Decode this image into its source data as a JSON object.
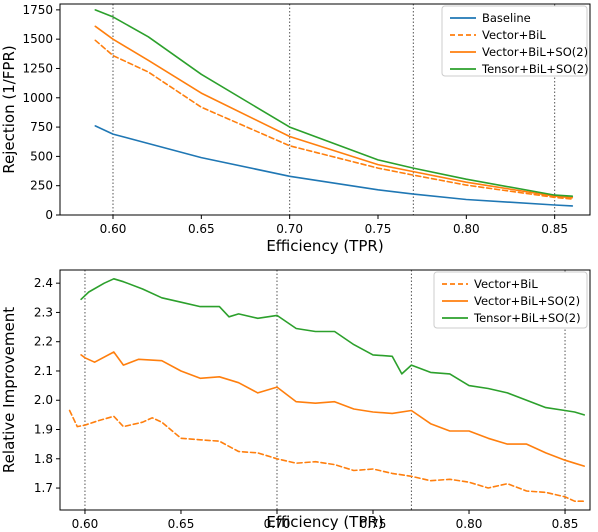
{
  "chart_data": [
    {
      "type": "line",
      "xlabel": "Efficiency (TPR)",
      "ylabel": "Rejection (1/FPR)",
      "xlim": [
        0.57,
        0.87
      ],
      "ylim": [
        0,
        1800
      ],
      "xticks": [
        "0.60",
        "0.65",
        "0.70",
        "0.75",
        "0.80",
        "0.85"
      ],
      "yticks": [
        "0",
        "250",
        "500",
        "750",
        "1000",
        "1250",
        "1500",
        "1750"
      ],
      "vlines": [
        0.6,
        0.7,
        0.77,
        0.85
      ],
      "grid": false,
      "legend_position": "upper right",
      "series": [
        {
          "name": "Baseline",
          "color": "#1f77b4",
          "style": "solid",
          "x": [
            0.59,
            0.6,
            0.62,
            0.65,
            0.7,
            0.75,
            0.77,
            0.8,
            0.85,
            0.86
          ],
          "y": [
            760,
            690,
            610,
            490,
            330,
            215,
            178,
            132,
            85,
            78
          ]
        },
        {
          "name": "Vector+BiL",
          "color": "#ff7f0e",
          "style": "dashed",
          "x": [
            0.59,
            0.6,
            0.62,
            0.65,
            0.7,
            0.75,
            0.77,
            0.8,
            0.85,
            0.86
          ],
          "y": [
            1490,
            1360,
            1220,
            920,
            590,
            400,
            340,
            255,
            150,
            136
          ]
        },
        {
          "name": "Vector+BiL+SO(2)",
          "color": "#ff7f0e",
          "style": "solid",
          "x": [
            0.59,
            0.6,
            0.62,
            0.65,
            0.7,
            0.75,
            0.77,
            0.8,
            0.85,
            0.86
          ],
          "y": [
            1610,
            1500,
            1320,
            1040,
            670,
            430,
            370,
            280,
            160,
            148
          ]
        },
        {
          "name": "Tensor+BiL+SO(2)",
          "color": "#2ca02c",
          "style": "solid",
          "x": [
            0.59,
            0.6,
            0.62,
            0.65,
            0.7,
            0.75,
            0.77,
            0.8,
            0.85,
            0.86
          ],
          "y": [
            1750,
            1690,
            1520,
            1200,
            750,
            470,
            400,
            305,
            170,
            160
          ]
        }
      ]
    },
    {
      "type": "line",
      "xlabel": "Efficiency (TPR)",
      "ylabel": "Relative Improvement",
      "xlim": [
        0.587,
        0.863
      ],
      "ylim": [
        1.625,
        2.445
      ],
      "xticks": [
        "0.60",
        "0.65",
        "0.70",
        "0.75",
        "0.80",
        "0.85"
      ],
      "yticks": [
        "1.7",
        "1.8",
        "1.9",
        "2.0",
        "2.1",
        "2.2",
        "2.3",
        "2.4"
      ],
      "vlines": [
        0.6,
        0.7,
        0.77,
        0.85
      ],
      "grid": false,
      "legend_position": "center right",
      "series": [
        {
          "name": "Vector+BiL",
          "color": "#ff7f0e",
          "style": "dashed",
          "x": [
            0.592,
            0.596,
            0.6,
            0.607,
            0.615,
            0.62,
            0.63,
            0.635,
            0.64,
            0.65,
            0.66,
            0.67,
            0.68,
            0.69,
            0.7,
            0.71,
            0.72,
            0.73,
            0.74,
            0.75,
            0.76,
            0.77,
            0.78,
            0.79,
            0.8,
            0.81,
            0.82,
            0.83,
            0.84,
            0.85,
            0.855,
            0.86
          ],
          "y": [
            1.965,
            1.91,
            1.915,
            1.93,
            1.945,
            1.91,
            1.925,
            1.94,
            1.925,
            1.87,
            1.865,
            1.86,
            1.825,
            1.82,
            1.8,
            1.785,
            1.79,
            1.78,
            1.76,
            1.765,
            1.75,
            1.74,
            1.725,
            1.73,
            1.72,
            1.7,
            1.715,
            1.69,
            1.685,
            1.67,
            1.655,
            1.655
          ]
        },
        {
          "name": "Vector+BiL+SO(2)",
          "color": "#ff7f0e",
          "style": "solid",
          "x": [
            0.598,
            0.6,
            0.605,
            0.615,
            0.62,
            0.628,
            0.64,
            0.65,
            0.66,
            0.67,
            0.68,
            0.69,
            0.7,
            0.71,
            0.72,
            0.73,
            0.74,
            0.75,
            0.76,
            0.77,
            0.78,
            0.79,
            0.8,
            0.81,
            0.82,
            0.83,
            0.84,
            0.85,
            0.855,
            0.86
          ],
          "y": [
            2.155,
            2.145,
            2.13,
            2.165,
            2.12,
            2.14,
            2.135,
            2.1,
            2.075,
            2.08,
            2.06,
            2.025,
            2.045,
            1.995,
            1.99,
            1.995,
            1.97,
            1.96,
            1.955,
            1.965,
            1.92,
            1.895,
            1.895,
            1.87,
            1.85,
            1.85,
            1.82,
            1.795,
            1.785,
            1.775
          ]
        },
        {
          "name": "Tensor+BiL+SO(2)",
          "color": "#2ca02c",
          "style": "solid",
          "x": [
            0.598,
            0.602,
            0.61,
            0.615,
            0.62,
            0.63,
            0.64,
            0.65,
            0.66,
            0.67,
            0.675,
            0.68,
            0.69,
            0.7,
            0.71,
            0.72,
            0.73,
            0.74,
            0.75,
            0.76,
            0.765,
            0.77,
            0.78,
            0.79,
            0.8,
            0.81,
            0.82,
            0.83,
            0.84,
            0.85,
            0.855,
            0.86
          ],
          "y": [
            2.345,
            2.37,
            2.4,
            2.415,
            2.405,
            2.38,
            2.35,
            2.335,
            2.32,
            2.32,
            2.285,
            2.295,
            2.28,
            2.29,
            2.245,
            2.235,
            2.235,
            2.19,
            2.155,
            2.15,
            2.09,
            2.12,
            2.095,
            2.09,
            2.05,
            2.04,
            2.025,
            2.0,
            1.975,
            1.965,
            1.96,
            1.95
          ]
        }
      ]
    }
  ]
}
